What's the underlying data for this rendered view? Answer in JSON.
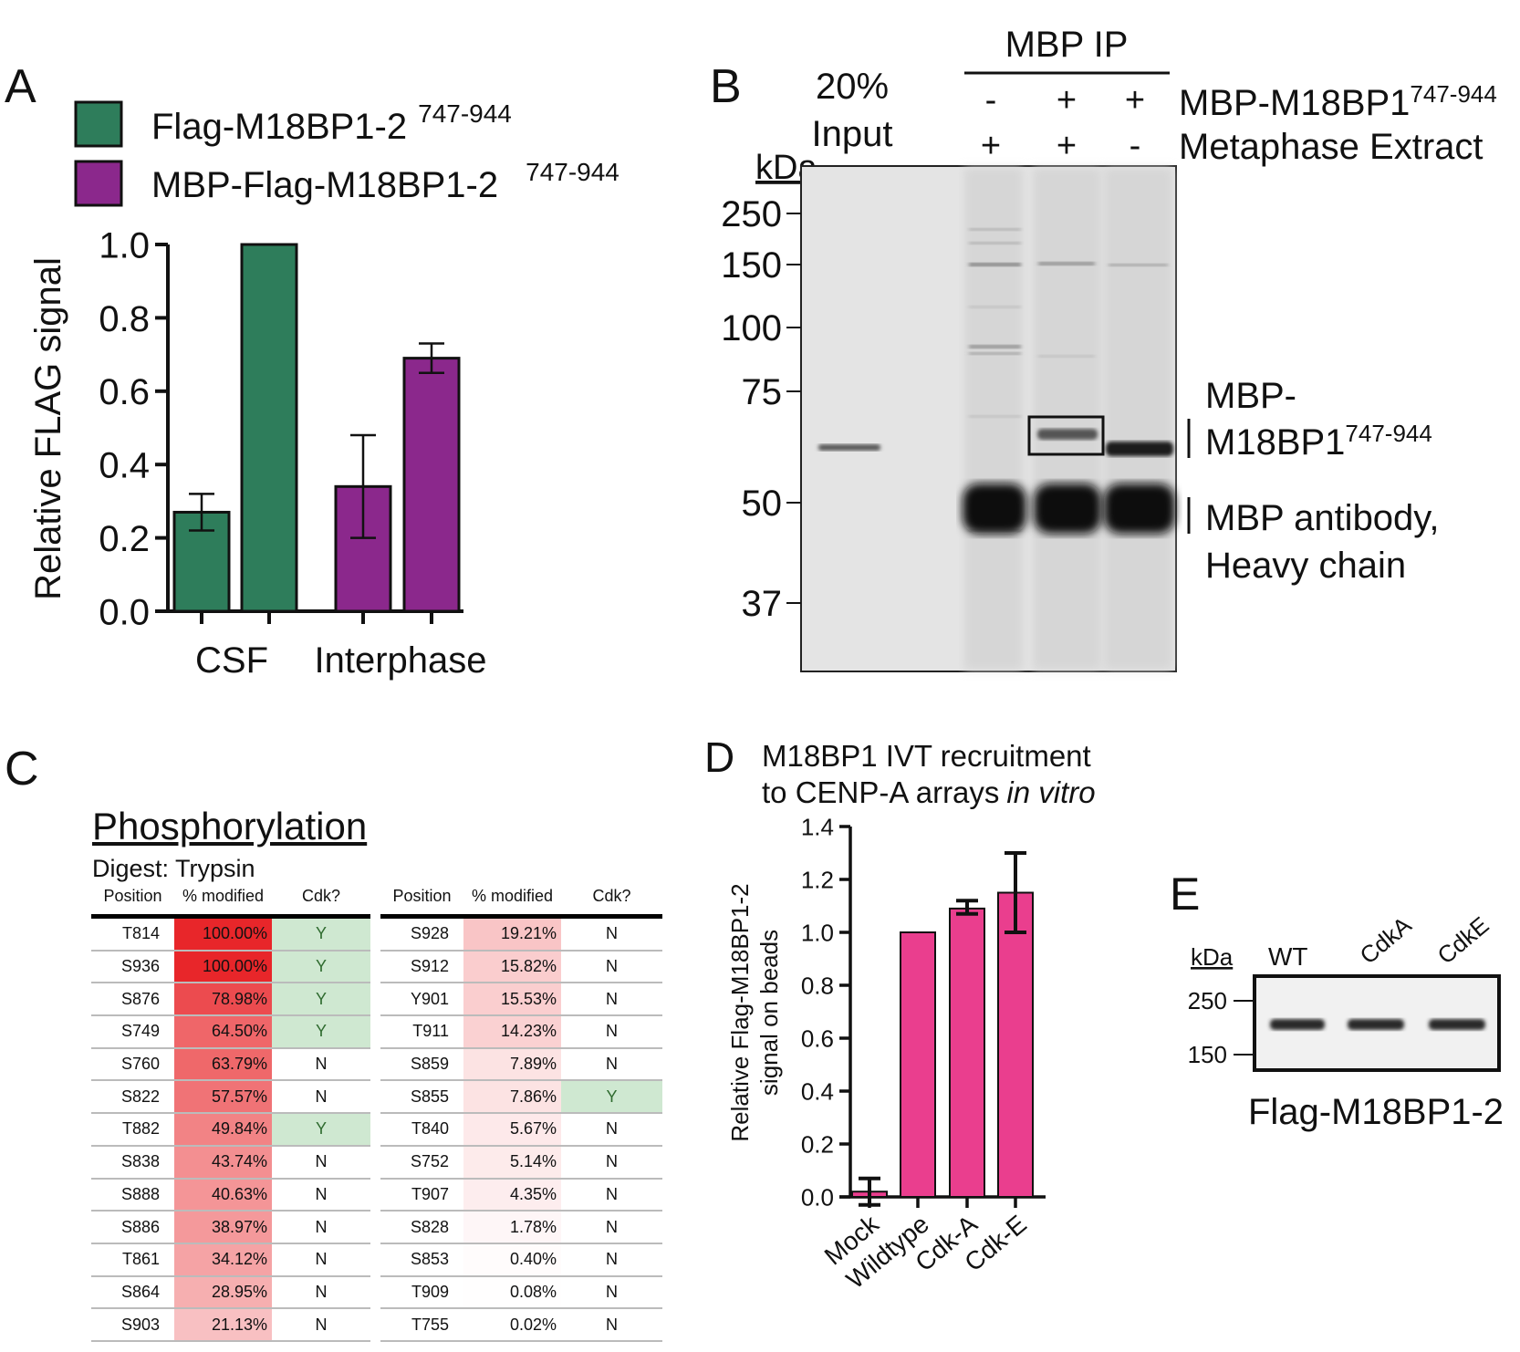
{
  "panels": {
    "A": "A",
    "B": "B",
    "C": "C",
    "D": "D",
    "E": "E"
  },
  "chart_data": [
    {
      "type": "bar",
      "panel": "A",
      "title": "",
      "xlabel": "",
      "ylabel": "Relative FLAG signal",
      "categories": [
        "CSF",
        "Interphase"
      ],
      "ylim": [
        0,
        1.0
      ],
      "yticks": [
        "0.0",
        "0.2",
        "0.4",
        "0.6",
        "0.8",
        "1.0"
      ],
      "legend": "top-left",
      "series": [
        {
          "name": "Flag-M18BP1-2",
          "superscript": "747-944",
          "color": "#2e7d5b",
          "values": [
            0.27,
            1.0
          ],
          "errors": [
            [
              0.22,
              0.32
            ],
            null
          ]
        },
        {
          "name": "MBP-Flag-M18BP1-2",
          "superscript": "747-944",
          "color": "#8b288c",
          "values": [
            0.34,
            0.69
          ],
          "errors": [
            [
              0.2,
              0.48
            ],
            [
              0.65,
              0.73
            ]
          ]
        }
      ]
    },
    {
      "type": "bar",
      "panel": "D",
      "title": "M18BP1 IVT recruitment",
      "title_line2": "to CENP-A arrays",
      "title_italic": "in vitro",
      "xlabel": "",
      "ylabel": "Relative Flag-M18BP1-2",
      "ylabel_line2": "signal on beads",
      "categories": [
        "Mock",
        "Wildtype",
        "Cdk-A",
        "Cdk-E"
      ],
      "ylim": [
        0,
        1.4
      ],
      "yticks": [
        "0.0",
        "0.2",
        "0.4",
        "0.6",
        "0.8",
        "1.0",
        "1.2",
        "1.4"
      ],
      "color": "#ea3e8e",
      "values": [
        0.02,
        1.0,
        1.09,
        1.15
      ],
      "errors": [
        [
          -0.03,
          0.07
        ],
        null,
        [
          1.07,
          1.12
        ],
        [
          1.0,
          1.3
        ]
      ]
    }
  ],
  "gel_b": {
    "header": "MBP IP",
    "input_label": [
      "20%",
      "Input"
    ],
    "kda_label": "kDa",
    "markers": [
      "250",
      "150",
      "100",
      "75",
      "50",
      "37"
    ],
    "row1_label": "MBP-M18BP1",
    "row1_sup": "747-944",
    "row1_signs": [
      "-",
      "+",
      "+"
    ],
    "row2_label": "Metaphase Extract",
    "row2_signs": [
      "+",
      "+",
      "-"
    ],
    "band_label_1": "MBP-",
    "band_label_2": "M18BP1",
    "band_label_2_sup": "747-944",
    "band_label_3": "MBP antibody,",
    "band_label_4": "Heavy chain"
  },
  "table": {
    "title": "Phosphorylation",
    "digest": "Digest:  Trypsin",
    "headers": [
      "Position",
      "% modified",
      "Cdk?"
    ],
    "left": [
      [
        "T814",
        "100.00%",
        "Y"
      ],
      [
        "S936",
        "100.00%",
        "Y"
      ],
      [
        "S876",
        "78.98%",
        "Y"
      ],
      [
        "S749",
        "64.50%",
        "Y"
      ],
      [
        "S760",
        "63.79%",
        "N"
      ],
      [
        "S822",
        "57.57%",
        "N"
      ],
      [
        "T882",
        "49.84%",
        "Y"
      ],
      [
        "S838",
        "43.74%",
        "N"
      ],
      [
        "S888",
        "40.63%",
        "N"
      ],
      [
        "S886",
        "38.97%",
        "N"
      ],
      [
        "T861",
        "34.12%",
        "N"
      ],
      [
        "S864",
        "28.95%",
        "N"
      ],
      [
        "S903",
        "21.13%",
        "N"
      ]
    ],
    "right": [
      [
        "S928",
        "19.21%",
        "N"
      ],
      [
        "S912",
        "15.82%",
        "N"
      ],
      [
        "Y901",
        "15.53%",
        "N"
      ],
      [
        "T911",
        "14.23%",
        "N"
      ],
      [
        "S859",
        "7.89%",
        "N"
      ],
      [
        "S855",
        "7.86%",
        "Y"
      ],
      [
        "T840",
        "5.67%",
        "N"
      ],
      [
        "S752",
        "5.14%",
        "N"
      ],
      [
        "T907",
        "4.35%",
        "N"
      ],
      [
        "S828",
        "1.78%",
        "N"
      ],
      [
        "S853",
        "0.40%",
        "N"
      ],
      [
        "T909",
        "0.08%",
        "N"
      ],
      [
        "T755",
        "0.02%",
        "N"
      ]
    ],
    "heat_color": "#e8262a"
  },
  "blot_e": {
    "kda_label": "kDa",
    "lanes": [
      "WT",
      "CdkA",
      "CdkE"
    ],
    "markers": [
      "250",
      "150"
    ],
    "caption": "Flag-M18BP1-2"
  }
}
